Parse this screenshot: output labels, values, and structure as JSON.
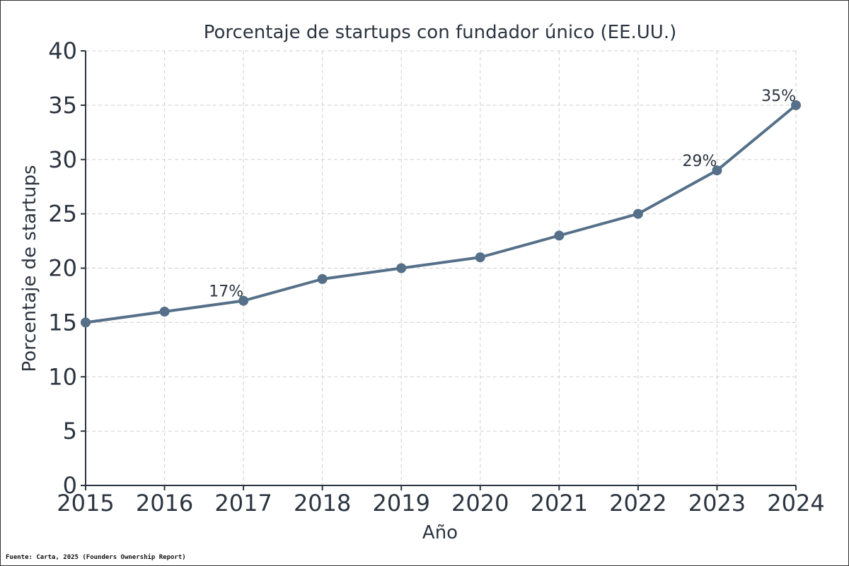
{
  "chart_data": {
    "type": "line",
    "title": "Porcentaje de startups con fundador único (EE.UU.)",
    "xlabel": "Año",
    "ylabel": "Porcentaje de startups",
    "x": [
      2015,
      2016,
      2017,
      2018,
      2019,
      2020,
      2021,
      2022,
      2023,
      2024
    ],
    "series": [
      {
        "name": "Porcentaje de startups con fundador único",
        "values": [
          15,
          16,
          17,
          19,
          20,
          21,
          23,
          25,
          29,
          35
        ],
        "color": "#557088"
      }
    ],
    "xlim": [
      2015,
      2024
    ],
    "ylim": [
      0,
      40
    ],
    "yticks": [
      0,
      5,
      10,
      15,
      20,
      25,
      30,
      35,
      40
    ],
    "grid": true,
    "annotations": [
      {
        "x": 2017,
        "y": 17,
        "text": "17%"
      },
      {
        "x": 2023,
        "y": 29,
        "text": "29%"
      },
      {
        "x": 2024,
        "y": 35,
        "text": "35%"
      }
    ]
  },
  "source_note": "Fuente: Carta, 2025 (Founders Ownership Report)",
  "colors": {
    "axis": "#2b3440",
    "grid": "#cfcfcf",
    "line": "#557088"
  }
}
